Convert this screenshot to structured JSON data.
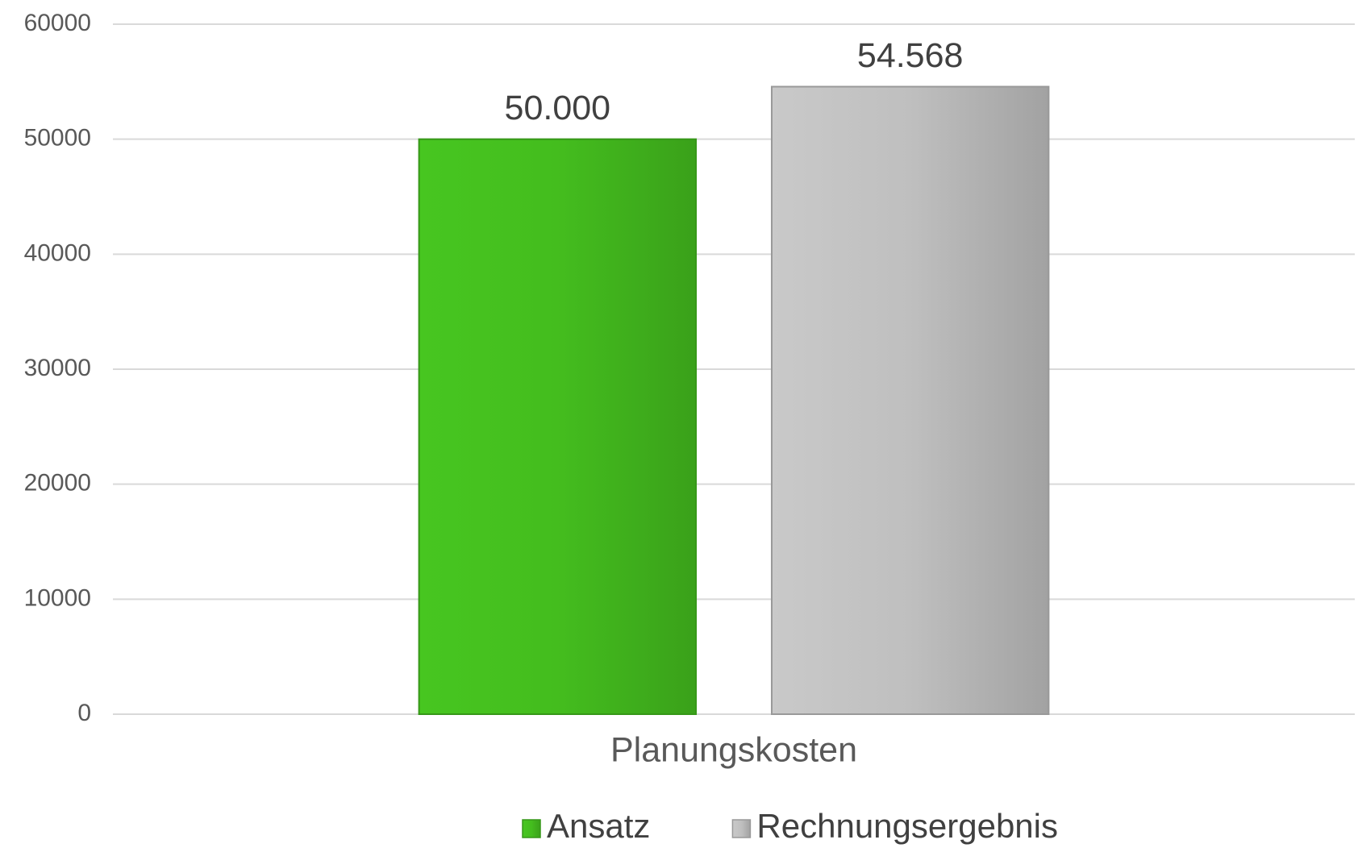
{
  "chart_data": {
    "type": "bar",
    "categories": [
      "Planungskosten"
    ],
    "series": [
      {
        "name": "Ansatz",
        "color": "#44bd1e",
        "values": [
          50000
        ],
        "value_labels": [
          "50.000"
        ]
      },
      {
        "name": "Rechnungsergebnis",
        "color": "#bfbfbf",
        "values": [
          54568
        ],
        "value_labels": [
          "54.568"
        ]
      }
    ],
    "ylim": [
      0,
      60000
    ],
    "yticks": [
      0,
      10000,
      20000,
      30000,
      40000,
      50000,
      60000
    ],
    "grid": true,
    "legend": "bottom"
  }
}
